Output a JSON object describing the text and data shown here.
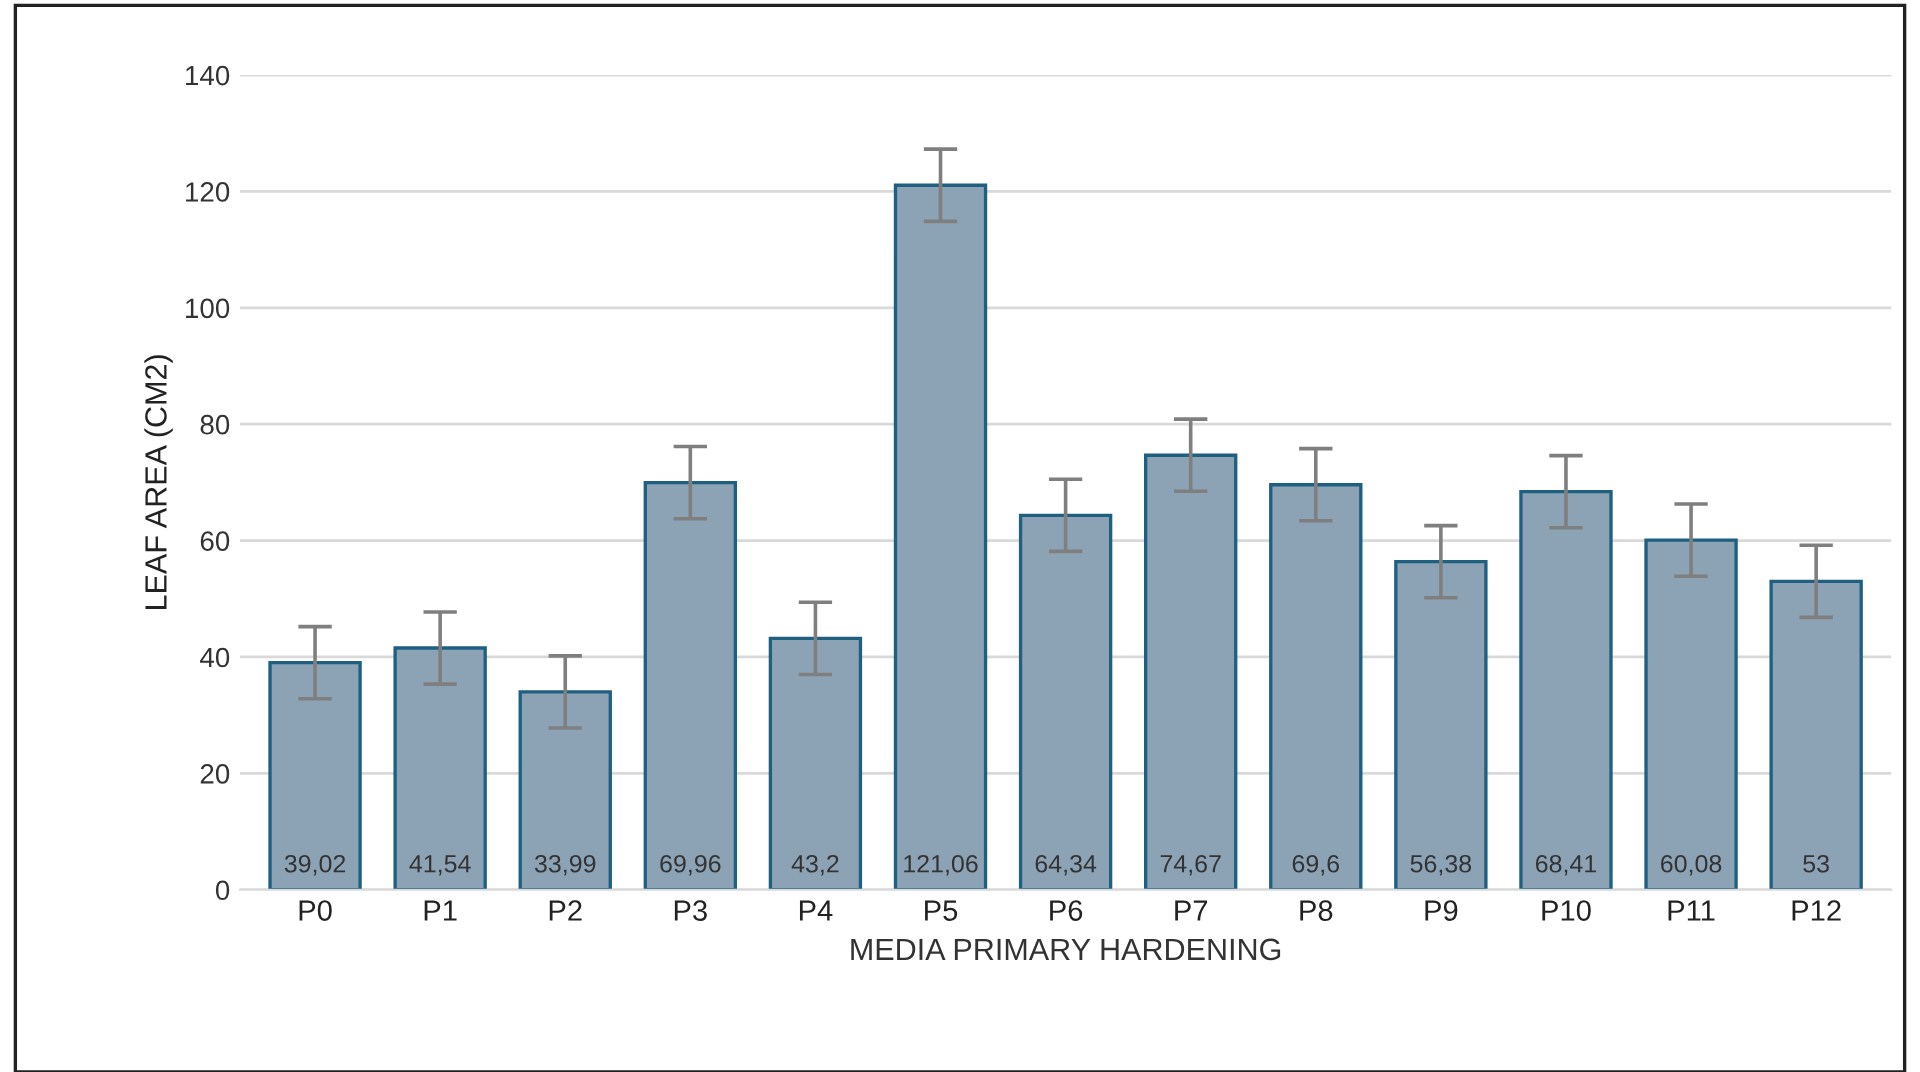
{
  "chart_data": {
    "type": "bar",
    "xlabel": "MEDIA PRIMARY HARDENING",
    "ylabel": "LEAF AREA (CM2)",
    "categories": [
      "P0",
      "P1",
      "P2",
      "P3",
      "P4",
      "P5",
      "P6",
      "P7",
      "P8",
      "P9",
      "P10",
      "P11",
      "P12"
    ],
    "values": [
      39.02,
      41.54,
      33.99,
      69.96,
      43.2,
      121.06,
      64.34,
      74.67,
      69.6,
      56.38,
      68.41,
      60.08,
      53
    ],
    "value_labels": [
      "39,02",
      "41,54",
      "33,99",
      "69,96",
      "43,2",
      "121,06",
      "64,34",
      "74,67",
      "69,6",
      "56,38",
      "68,41",
      "60,08",
      "53"
    ],
    "errors": [
      6.2,
      6.2,
      6.2,
      6.2,
      6.2,
      6.2,
      6.2,
      6.2,
      6.2,
      6.2,
      6.2,
      6.2,
      6.2
    ],
    "color": "#8ca3b6",
    "ylim": [
      0,
      140
    ],
    "yticks": [
      0,
      20,
      40,
      60,
      80,
      100,
      120,
      140
    ],
    "grid": "y",
    "legend": false
  }
}
